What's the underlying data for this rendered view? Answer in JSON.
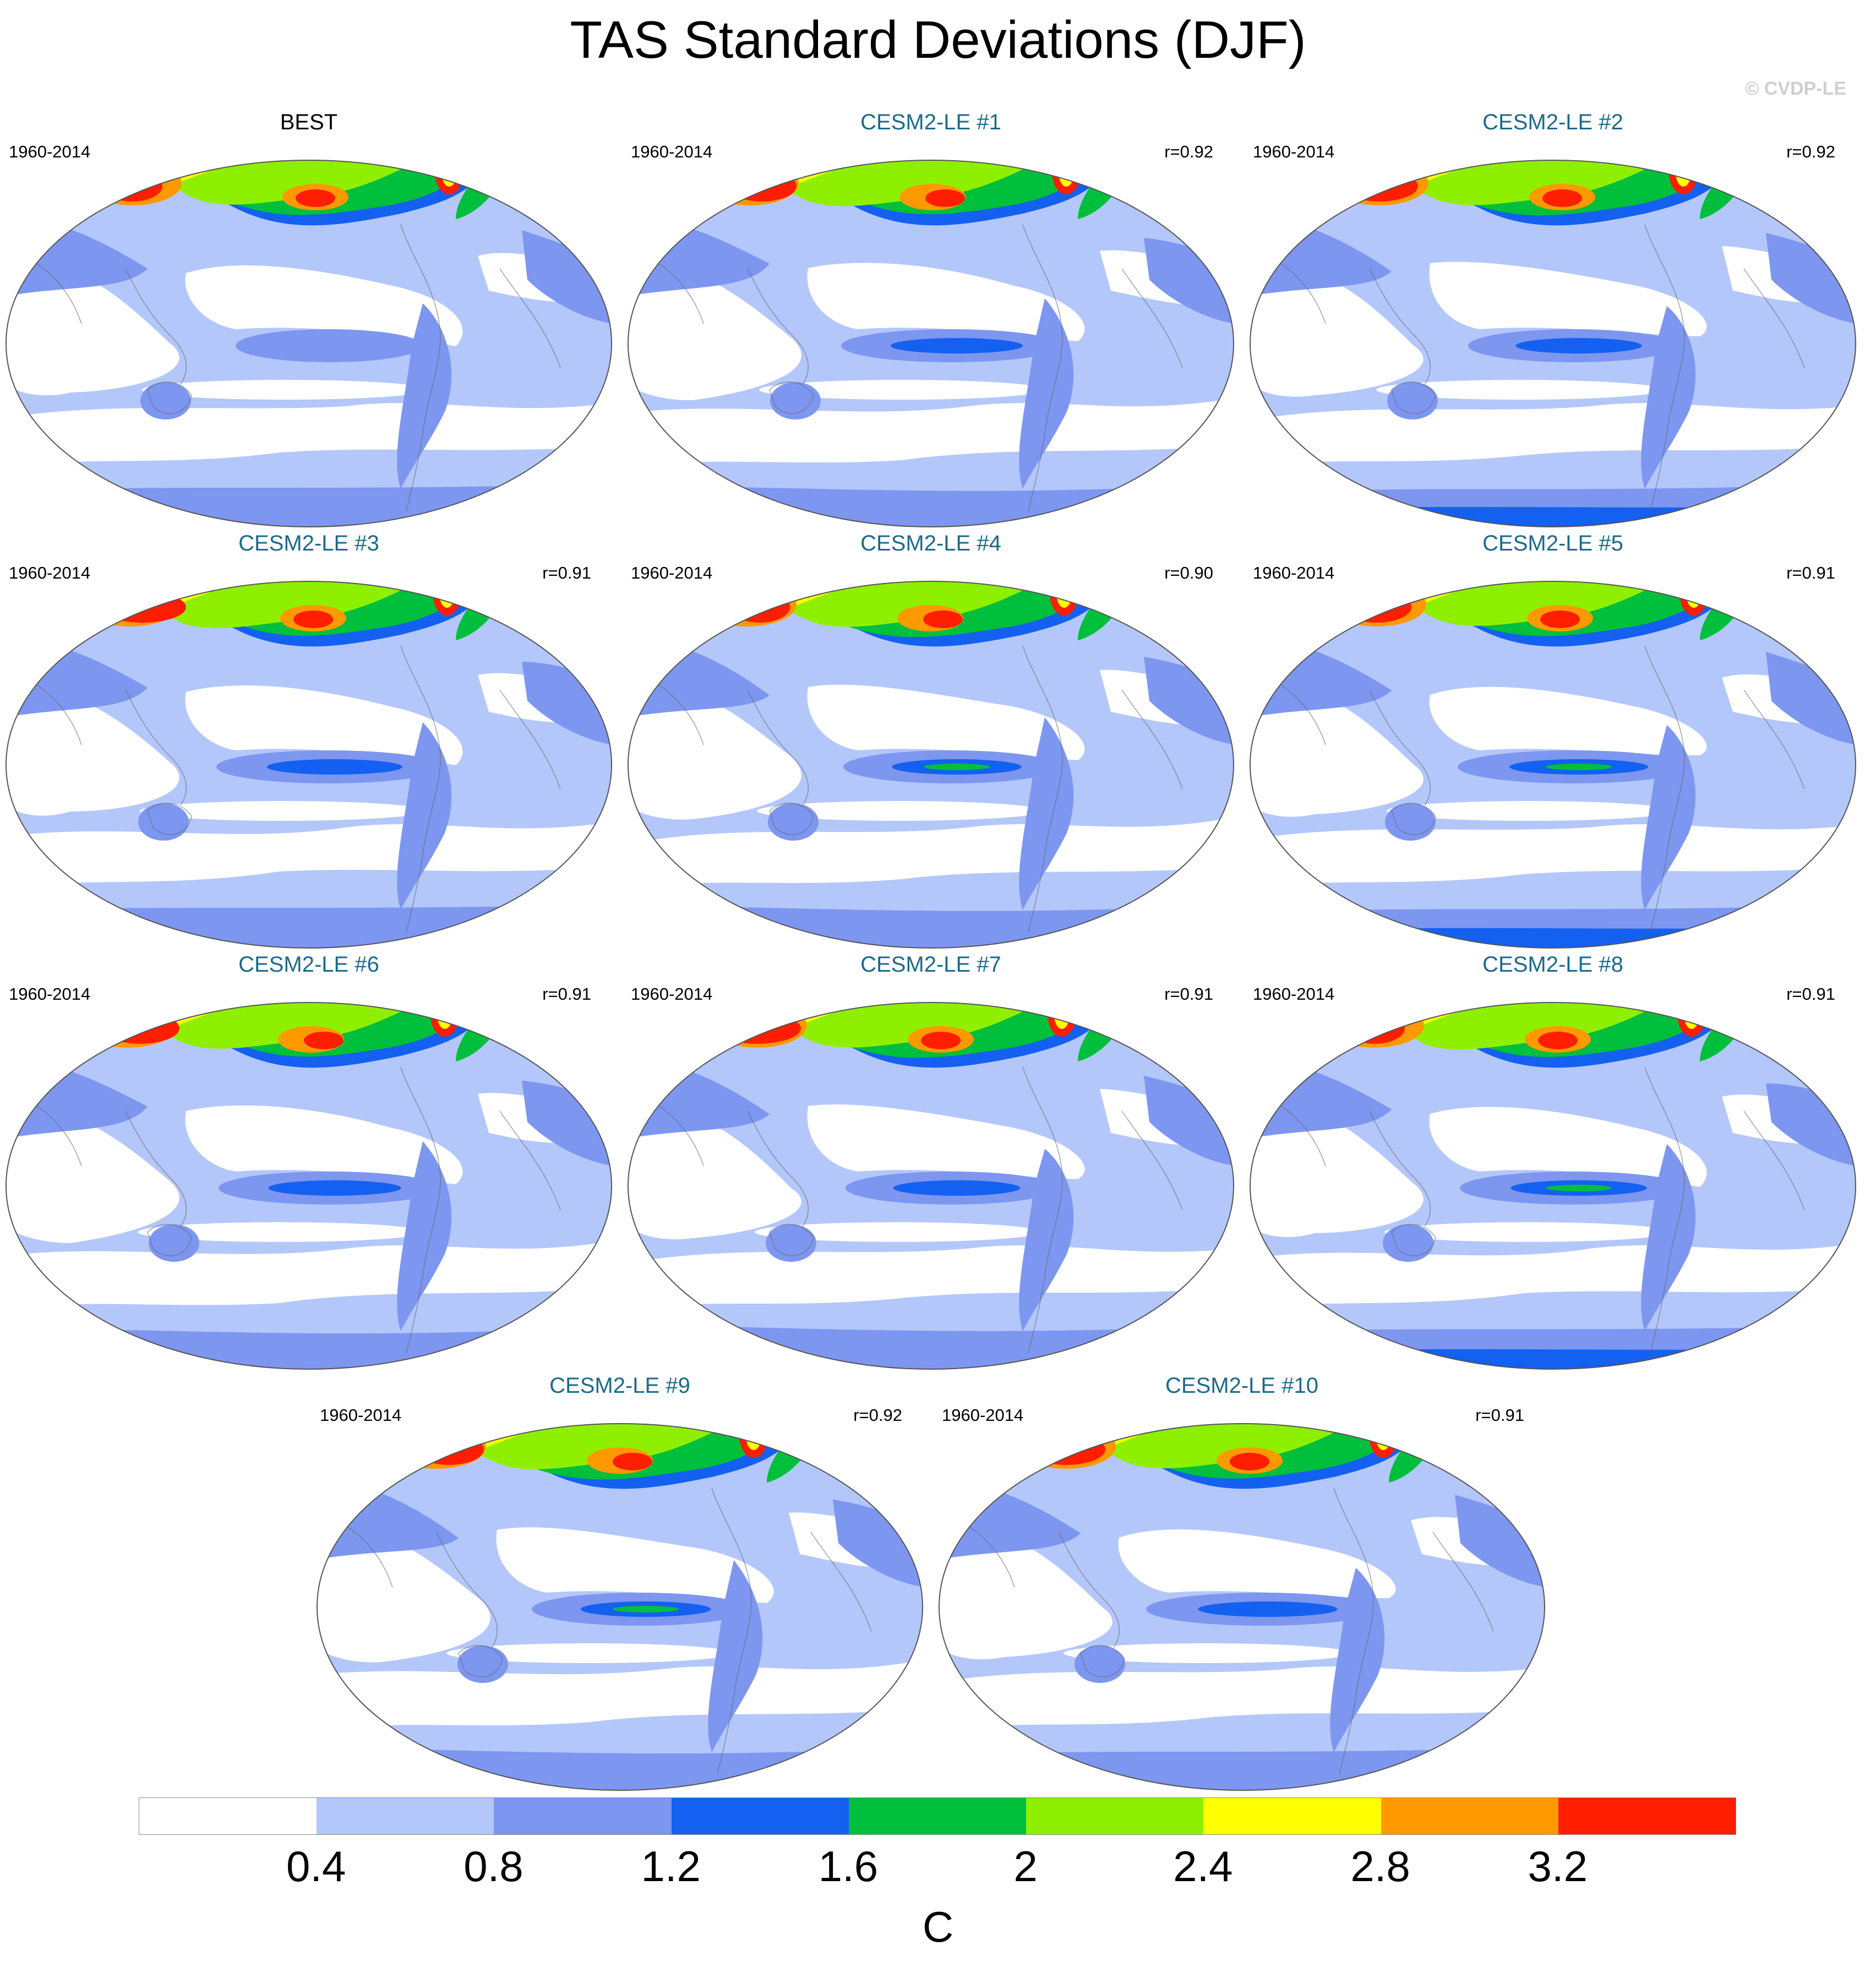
{
  "title": "TAS Standard Deviations (DJF)",
  "copyright": "© CVDP-LE",
  "panels": [
    {
      "title": "BEST",
      "period": "1960-2014",
      "corr": "",
      "title_color": "#000000",
      "variant": 0
    },
    {
      "title": "CESM2-LE #1",
      "period": "1960-2014",
      "corr": "r=0.92",
      "title_color": "#1b6a8a",
      "variant": 1
    },
    {
      "title": "CESM2-LE #2",
      "period": "1960-2014",
      "corr": "r=0.92",
      "title_color": "#1b6a8a",
      "variant": 2
    },
    {
      "title": "CESM2-LE #3",
      "period": "1960-2014",
      "corr": "r=0.91",
      "title_color": "#1b6a8a",
      "variant": 3
    },
    {
      "title": "CESM2-LE #4",
      "period": "1960-2014",
      "corr": "r=0.90",
      "title_color": "#1b6a8a",
      "variant": 4
    },
    {
      "title": "CESM2-LE #5",
      "period": "1960-2014",
      "corr": "r=0.91",
      "title_color": "#1b6a8a",
      "variant": 5
    },
    {
      "title": "CESM2-LE #6",
      "period": "1960-2014",
      "corr": "r=0.91",
      "title_color": "#1b6a8a",
      "variant": 6
    },
    {
      "title": "CESM2-LE #7",
      "period": "1960-2014",
      "corr": "r=0.91",
      "title_color": "#1b6a8a",
      "variant": 7
    },
    {
      "title": "CESM2-LE #8",
      "period": "1960-2014",
      "corr": "r=0.91",
      "title_color": "#1b6a8a",
      "variant": 8
    },
    {
      "title": "CESM2-LE #9",
      "period": "1960-2014",
      "corr": "r=0.92",
      "title_color": "#1b6a8a",
      "variant": 9
    },
    {
      "title": "CESM2-LE #10",
      "period": "1960-2014",
      "corr": "r=0.91",
      "title_color": "#1b6a8a",
      "variant": 10
    }
  ],
  "colorbar": {
    "colors": [
      "#ffffff",
      "#b4c7fb",
      "#7d96f0",
      "#1460f0",
      "#00bf3c",
      "#8ef000",
      "#ffff00",
      "#ff9900",
      "#ff1e00"
    ],
    "ticks": [
      "0.4",
      "0.8",
      "1.2",
      "1.6",
      "2",
      "2.4",
      "2.8",
      "3.2"
    ],
    "units": "C"
  }
}
